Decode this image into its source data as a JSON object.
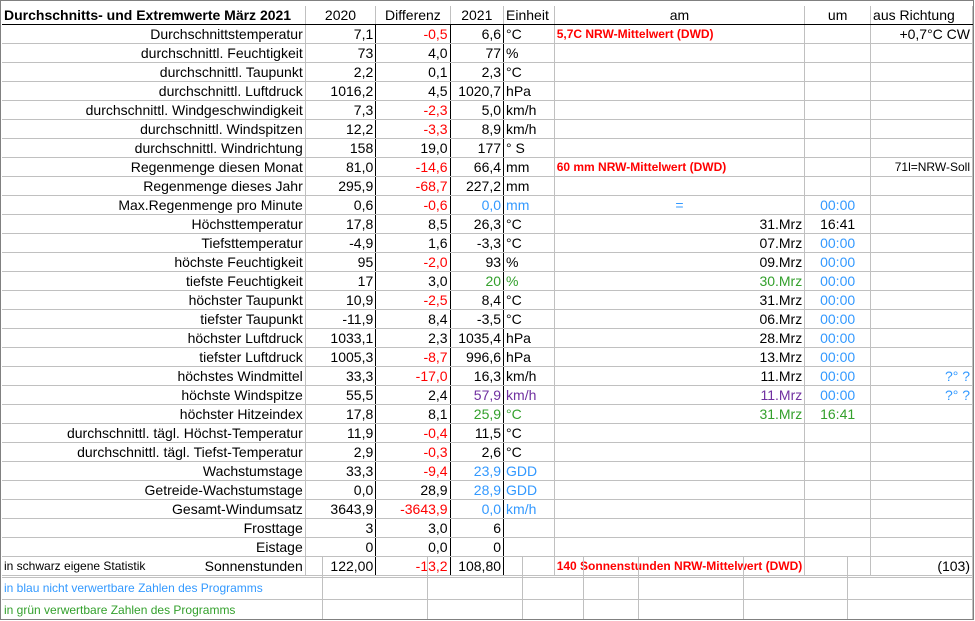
{
  "header": {
    "title": "Durchschnitts- und Extremwerte März 2021",
    "col_2020": "2020",
    "col_diff": "Differenz",
    "col_2021": "2021",
    "col_unit": "Einheit",
    "col_am": "am",
    "col_um": "um",
    "col_dir": "aus Richtung"
  },
  "rows": [
    {
      "label": "Durchschnittstemperatur",
      "v2020": "7,1",
      "diff": "-0,5",
      "v2021": "6,6",
      "unit": "°C",
      "am": "5,7C NRW-Mittelwert (DWD)",
      "um": "",
      "dir": "+0,7°C CW"
    },
    {
      "label": "durchschnittl. Feuchtigkeit",
      "v2020": "73",
      "diff": "4,0",
      "v2021": "77",
      "unit": "%",
      "am": "",
      "um": "",
      "dir": ""
    },
    {
      "label": "durchschnittl. Taupunkt",
      "v2020": "2,2",
      "diff": "0,1",
      "v2021": "2,3",
      "unit": "°C",
      "am": "",
      "um": "",
      "dir": ""
    },
    {
      "label": "durchschnittl. Luftdruck",
      "v2020": "1016,2",
      "diff": "4,5",
      "v2021": "1020,7",
      "unit": "hPa",
      "am": "",
      "um": "",
      "dir": ""
    },
    {
      "label": "durchschnittl. Windgeschwindigkeit",
      "v2020": "7,3",
      "diff": "-2,3",
      "v2021": "5,0",
      "unit": "km/h",
      "am": "",
      "um": "",
      "dir": ""
    },
    {
      "label": "durchschnittl. Windspitzen",
      "v2020": "12,2",
      "diff": "-3,3",
      "v2021": "8,9",
      "unit": "km/h",
      "am": "",
      "um": "",
      "dir": ""
    },
    {
      "label": "durchschnittl. Windrichtung",
      "v2020": "158",
      "diff": "19,0",
      "v2021": "177",
      "unit": "°  S",
      "am": "",
      "um": "",
      "dir": ""
    },
    {
      "label": "Regenmenge diesen Monat",
      "v2020": "81,0",
      "diff": "-14,6",
      "v2021": "66,4",
      "unit": "mm",
      "am": "60 mm NRW-Mittelwert (DWD)",
      "um": "",
      "dir": "71l=NRW-Soll"
    },
    {
      "label": "Regenmenge dieses Jahr",
      "v2020": "295,9",
      "diff": "-68,7",
      "v2021": "227,2",
      "unit": "mm",
      "am": "",
      "um": "",
      "dir": ""
    },
    {
      "label": "Max.Regenmenge pro Minute",
      "v2020": "0,6",
      "diff": "-0,6",
      "v2021": "0,0",
      "unit": "mm",
      "am": "=",
      "um": "00:00",
      "dir": ""
    },
    {
      "label": "Höchsttemperatur",
      "v2020": "17,8",
      "diff": "8,5",
      "v2021": "26,3",
      "unit": "°C",
      "am": "31.Mrz",
      "um": "16:41",
      "dir": ""
    },
    {
      "label": "Tiefsttemperatur",
      "v2020": "-4,9",
      "diff": "1,6",
      "v2021": "-3,3",
      "unit": "°C",
      "am": "07.Mrz",
      "um": "00:00",
      "dir": ""
    },
    {
      "label": "höchste Feuchtigkeit",
      "v2020": "95",
      "diff": "-2,0",
      "v2021": "93",
      "unit": "%",
      "am": "09.Mrz",
      "um": "00:00",
      "dir": ""
    },
    {
      "label": "tiefste Feuchtigkeit",
      "v2020": "17",
      "diff": "3,0",
      "v2021": "20",
      "unit": "%",
      "am": "30.Mrz",
      "um": "00:00",
      "dir": ""
    },
    {
      "label": "höchster Taupunkt",
      "v2020": "10,9",
      "diff": "-2,5",
      "v2021": "8,4",
      "unit": "°C",
      "am": "31.Mrz",
      "um": "00:00",
      "dir": ""
    },
    {
      "label": "tiefster Taupunkt",
      "v2020": "-11,9",
      "diff": "8,4",
      "v2021": "-3,5",
      "unit": "°C",
      "am": "06.Mrz",
      "um": "00:00",
      "dir": ""
    },
    {
      "label": "höchster Luftdruck",
      "v2020": "1033,1",
      "diff": "2,3",
      "v2021": "1035,4",
      "unit": "hPa",
      "am": "28.Mrz",
      "um": "00:00",
      "dir": ""
    },
    {
      "label": "tiefster Luftdruck",
      "v2020": "1005,3",
      "diff": "-8,7",
      "v2021": "996,6",
      "unit": "hPa",
      "am": "13.Mrz",
      "um": "00:00",
      "dir": ""
    },
    {
      "label": "höchstes Windmittel",
      "v2020": "33,3",
      "diff": "-17,0",
      "v2021": "16,3",
      "unit": "km/h",
      "am": "11.Mrz",
      "um": "00:00",
      "dir": "?° ?"
    },
    {
      "label": "höchste Windspitze",
      "v2020": "55,5",
      "diff": "2,4",
      "v2021": "57,9",
      "unit": "km/h",
      "am": "11.Mrz",
      "um": "00:00",
      "dir": "?° ?"
    },
    {
      "label": "höchster Hitzeindex",
      "v2020": "17,8",
      "diff": "8,1",
      "v2021": "25,9",
      "unit": "°C",
      "am": "31.Mrz",
      "um": "16:41",
      "dir": ""
    },
    {
      "label": "durchschnittl. tägl. Höchst-Temperatur",
      "v2020": "11,9",
      "diff": "-0,4",
      "v2021": "11,5",
      "unit": "°C",
      "am": "",
      "um": "",
      "dir": ""
    },
    {
      "label": "durchschnittl. tägl. Tiefst-Temperatur",
      "v2020": "2,9",
      "diff": "-0,3",
      "v2021": "2,6",
      "unit": "°C",
      "am": "",
      "um": "",
      "dir": ""
    },
    {
      "label": "Wachstumstage",
      "v2020": "33,3",
      "diff": "-9,4",
      "v2021": "23,9",
      "unit": "GDD",
      "am": "",
      "um": "",
      "dir": ""
    },
    {
      "label": "Getreide-Wachstumstage",
      "v2020": "0,0",
      "diff": "28,9",
      "v2021": "28,9",
      "unit": "GDD",
      "am": "",
      "um": "",
      "dir": ""
    },
    {
      "label": "Gesamt-Windumsatz",
      "v2020": "3643,9",
      "diff": "-3643,9",
      "v2021": "0,0",
      "unit": "km/h",
      "am": "",
      "um": "",
      "dir": ""
    },
    {
      "label": "Frosttage",
      "v2020": "3",
      "diff": "3,0",
      "v2021": "6",
      "unit": "",
      "am": "",
      "um": "",
      "dir": ""
    },
    {
      "label": "Eistage",
      "v2020": "0",
      "diff": "0,0",
      "v2021": "0",
      "unit": "",
      "am": "",
      "um": "",
      "dir": ""
    },
    {
      "label": "Sonnenstunden",
      "v2020": "122,00",
      "diff": "-13,2",
      "v2021": "108,80",
      "unit": "",
      "am": "140 Sonnenstunden NRW-Mittelwert (DWD)",
      "um": "",
      "dir": "(103)"
    }
  ],
  "notes": {
    "black": "in schwarz eigene Statistik",
    "blue": "in blau nicht verwertbare Zahlen des Programms",
    "green": "in grün verwertbare Zahlen des Programms"
  },
  "colors": {
    "red": "#ff0000",
    "blue": "#3399ff",
    "green": "#33a02c",
    "purple": "#7030a0"
  }
}
